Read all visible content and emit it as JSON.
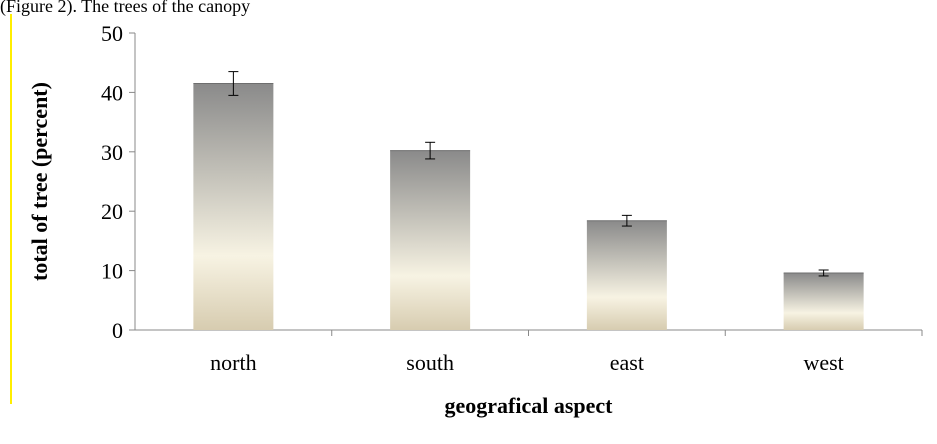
{
  "page": {
    "top_text": "(Figure 2). The trees of the canopy"
  },
  "chart_data": {
    "type": "bar",
    "categories": [
      "north",
      "south",
      "east",
      "west"
    ],
    "values": [
      41.5,
      30.2,
      18.4,
      9.6
    ],
    "errors": [
      2.0,
      1.4,
      0.9,
      0.5
    ],
    "title": "",
    "xlabel": "geografical aspect",
    "ylabel": "total of tree (percent)",
    "ylim": [
      0,
      50
    ],
    "yticks": [
      0,
      10,
      20,
      30,
      40,
      50
    ],
    "grid": false,
    "legend": "none",
    "colors": {
      "bar_top": "#8a8a8a",
      "bar_mid": "#f7f3e3",
      "bar_bottom": "#d7ccb0",
      "axis": "#888888"
    }
  }
}
